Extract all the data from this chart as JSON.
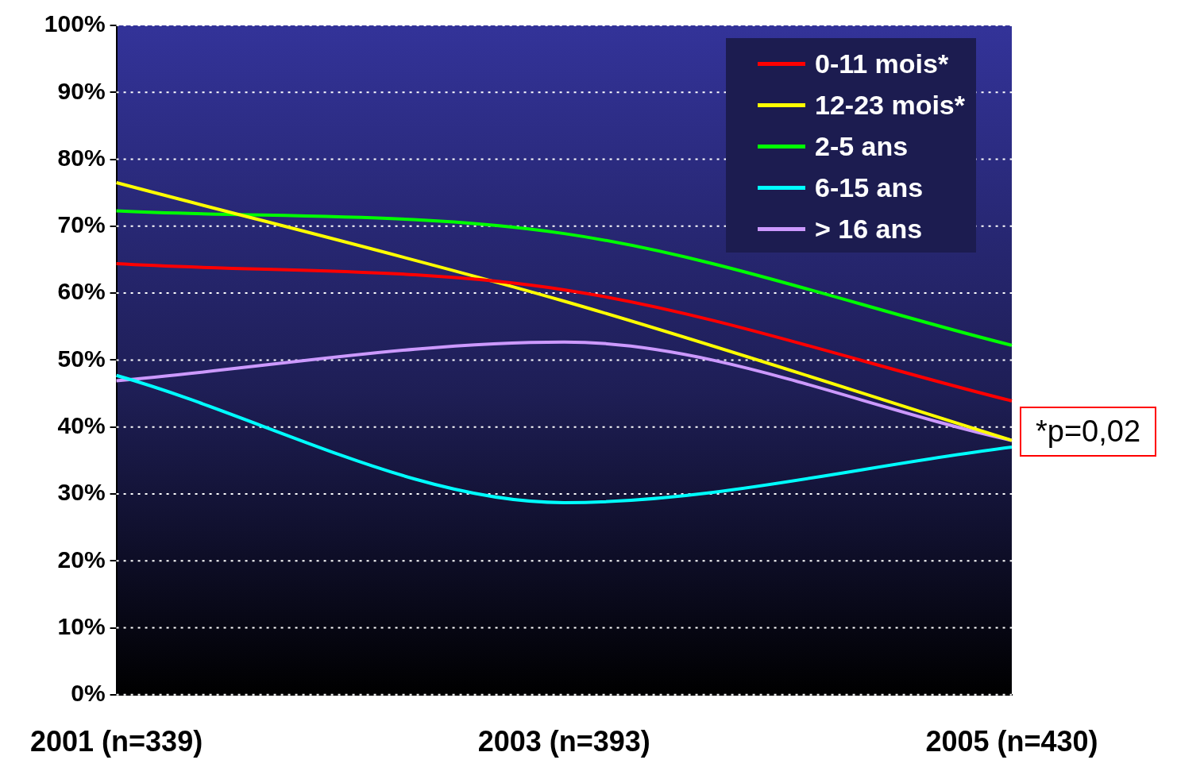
{
  "chart_data": {
    "type": "line",
    "categories": [
      "2001 (n=339)",
      "2003 (n=393)",
      "2005 (n=430)"
    ],
    "series": [
      {
        "name": "0-11 mois*",
        "color": "#ff0000",
        "values": [
          64.4,
          60.5,
          43.9
        ]
      },
      {
        "name": "12-23 mois*",
        "color": "#ffff00",
        "values": [
          76.5,
          58.8,
          38
        ]
      },
      {
        "name": "2-5 ans",
        "color": "#00ff00",
        "values": [
          72.3,
          68.9,
          52.2
        ]
      },
      {
        "name": "6-15 ans",
        "color": "#00ffff",
        "values": [
          47.7,
          28.7,
          37
        ]
      },
      {
        "name": "> 16 ans",
        "color": "#cc99ff",
        "values": [
          46.9,
          52.7,
          38
        ]
      }
    ],
    "ylim": [
      0,
      100
    ],
    "yticks": [
      {
        "value": 0,
        "label": "0%"
      },
      {
        "value": 10,
        "label": "10%"
      },
      {
        "value": 20,
        "label": "20%"
      },
      {
        "value": 30,
        "label": "30%"
      },
      {
        "value": 40,
        "label": "40%"
      },
      {
        "value": 50,
        "label": "50%"
      },
      {
        "value": 60,
        "label": "60%"
      },
      {
        "value": 70,
        "label": "70%"
      },
      {
        "value": 80,
        "label": "80%"
      },
      {
        "value": 90,
        "label": "90%"
      },
      {
        "value": 100,
        "label": "100%"
      }
    ],
    "grid": "y",
    "legend": "top right",
    "marker": "none",
    "line_style": "solid",
    "annotations": [
      "*p=0,02"
    ]
  }
}
